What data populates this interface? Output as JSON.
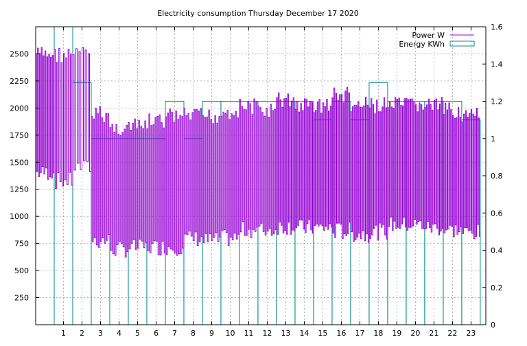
{
  "chart_data": {
    "type": "line",
    "title": "Electricity consumption Thursday December 17 2020",
    "xlabel": "",
    "ylabel": "",
    "y2label": "",
    "xlim": [
      -0.5,
      23.8
    ],
    "ylim": [
      0,
      2750
    ],
    "y2lim": [
      0,
      1.6
    ],
    "grid": true,
    "legend_position": "top-right",
    "x_ticks": [
      1,
      2,
      3,
      4,
      5,
      6,
      7,
      8,
      9,
      10,
      11,
      12,
      13,
      14,
      15,
      16,
      17,
      18,
      19,
      20,
      21,
      22,
      23
    ],
    "y_ticks": [
      250,
      500,
      750,
      1000,
      1250,
      1500,
      1750,
      2000,
      2250,
      2500
    ],
    "y2_ticks": [
      "0",
      "0.2",
      "0.4",
      "0.6",
      "0.8",
      "1",
      "1.2",
      "1.4",
      "1.6"
    ],
    "series": [
      {
        "name": "Power W",
        "kind": "line",
        "axis": "y",
        "color": "#9400d3",
        "hours": [
          0,
          1,
          2,
          3,
          4,
          5,
          6,
          7,
          8,
          9,
          10,
          11,
          12,
          13,
          14,
          15,
          16,
          17,
          18,
          19,
          20,
          21,
          22,
          23
        ],
        "low": [
          1330,
          1250,
          1380,
          700,
          620,
          640,
          640,
          640,
          720,
          700,
          720,
          800,
          800,
          830,
          820,
          820,
          780,
          760,
          780,
          850,
          850,
          820,
          800,
          780
        ],
        "high": [
          2570,
          2570,
          2570,
          2020,
          1890,
          1900,
          1950,
          2000,
          2000,
          2000,
          2050,
          2090,
          2050,
          2150,
          2100,
          2100,
          2200,
          2100,
          2100,
          2100,
          2100,
          2100,
          2050,
          2000
        ],
        "cycles": [
          10,
          8,
          6,
          9,
          9,
          9,
          9,
          9,
          9,
          9,
          9,
          9,
          9,
          10,
          10,
          10,
          10,
          10,
          10,
          10,
          10,
          10,
          10,
          10
        ]
      },
      {
        "name": "Energy KWh",
        "kind": "impulse-boxes",
        "axis": "y2",
        "color": "#008b8b",
        "hours": [
          0,
          1,
          2,
          3,
          4,
          5,
          6,
          7,
          8,
          9,
          10,
          11,
          12,
          13,
          14,
          15,
          16,
          17,
          18,
          19,
          20,
          21,
          22,
          23
        ],
        "values": [
          1.6,
          1.6,
          1.3,
          1.0,
          1.0,
          1.0,
          1.0,
          1.2,
          1.0,
          1.2,
          1.2,
          1.2,
          1.2,
          1.2,
          1.2,
          1.1,
          1.2,
          1.1,
          1.3,
          1.2,
          1.2,
          1.2,
          1.2,
          1.1
        ]
      }
    ]
  }
}
